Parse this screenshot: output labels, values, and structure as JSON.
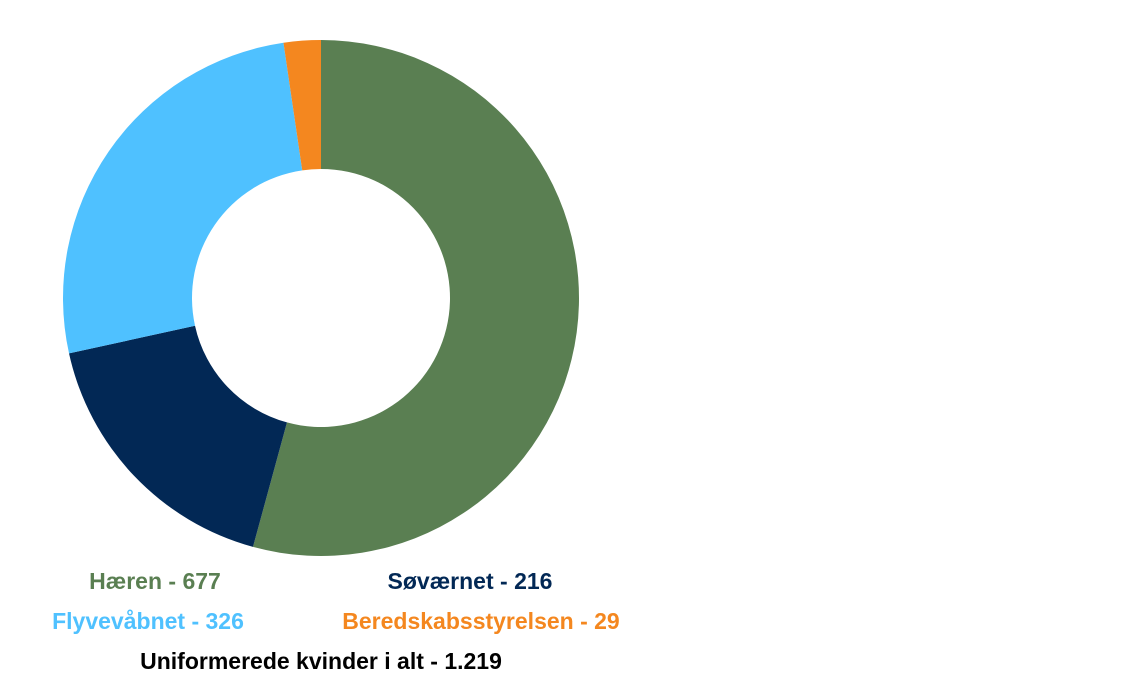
{
  "chart_data": {
    "type": "pie",
    "donut": true,
    "title": "",
    "slices": [
      {
        "name": "Hæren",
        "value": 677,
        "color": "#5a7f52",
        "label": "Hæren - 677"
      },
      {
        "name": "Søværnet",
        "value": 216,
        "color": "#022855",
        "label": "Søværnet - 216"
      },
      {
        "name": "Flyvevåbnet",
        "value": 326,
        "color": "#4fc1ff",
        "label": "Flyvevåbnet - 326"
      },
      {
        "name": "Beredskabsstyrelsen",
        "value": 29,
        "color": "#f4871f",
        "label": "Beredskabsstyrelsen - 29"
      }
    ],
    "total_label": "Uniformerede kvinder i alt - 1.219",
    "legend_position": "bottom"
  }
}
